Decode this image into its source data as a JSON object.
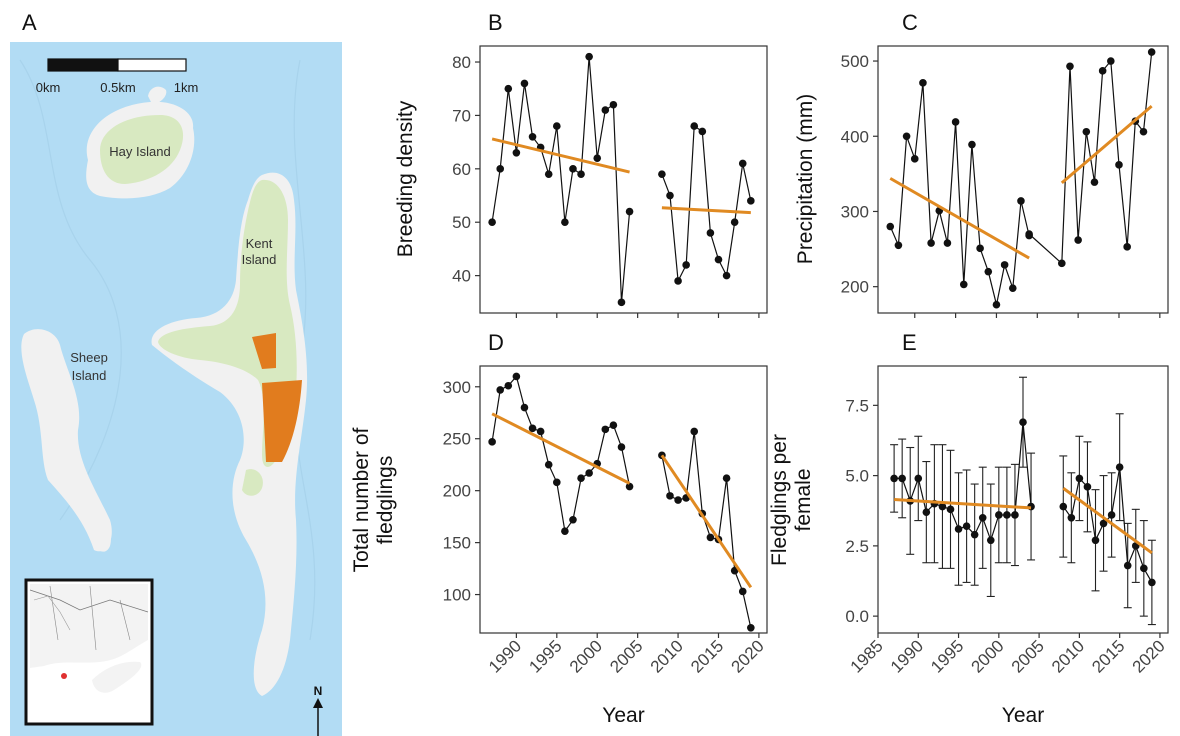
{
  "figure": {
    "panel_letters": [
      "A",
      "B",
      "C",
      "D",
      "E"
    ]
  },
  "map": {
    "scale_labels": [
      "0km",
      "0.5km",
      "1km"
    ],
    "north_label": "N",
    "island_labels": [
      [
        "Hay Island"
      ],
      [
        "Kent",
        "Island"
      ],
      [
        "Sheep",
        "Island"
      ]
    ],
    "colors": {
      "water": "#b2dcf4",
      "land": "#f1f1f1",
      "vegetation": "#d8e9c1",
      "study_plots": "#e17c1e"
    }
  },
  "colors": {
    "trend": "#e08a22",
    "points": "#111111",
    "frame": "#333333"
  },
  "chart_data": [
    {
      "panel": "B",
      "type": "line",
      "ylabel": [
        "Breeding density"
      ],
      "xlabel": "",
      "xlim": [
        1985.5,
        2021
      ],
      "ylim": [
        33,
        83
      ],
      "yticks": [
        40,
        50,
        60,
        70,
        80
      ],
      "xticks": [
        1990,
        1995,
        2000,
        2005,
        2010,
        2015,
        2020
      ],
      "show_x_ticklabels": false,
      "series": [
        {
          "x": [
            1987,
            1988,
            1989,
            1990,
            1991,
            1992,
            1993,
            1994,
            1995,
            1996,
            1997,
            1998,
            1999,
            2000,
            2001,
            2002,
            2003,
            2004
          ],
          "y": [
            50,
            60,
            75,
            63,
            76,
            66,
            64,
            59,
            68,
            50,
            60,
            59,
            81,
            62,
            71,
            72,
            35,
            52
          ]
        },
        {
          "x": [
            2008,
            2009,
            2010,
            2011,
            2012,
            2013,
            2014,
            2015,
            2016,
            2017,
            2018,
            2019
          ],
          "y": [
            59,
            55,
            39,
            42,
            68,
            67,
            48,
            43,
            40,
            50,
            61,
            54
          ]
        }
      ],
      "trends": [
        {
          "x": [
            1987,
            2004
          ],
          "y": [
            65.6,
            59.4
          ]
        },
        {
          "x": [
            2008,
            2019
          ],
          "y": [
            52.7,
            51.8
          ]
        }
      ]
    },
    {
      "panel": "C",
      "type": "line",
      "ylabel": [
        "Precipitation (mm)"
      ],
      "xlabel": "",
      "xlim": [
        1985.5,
        2021
      ],
      "ylim": [
        165,
        520
      ],
      "yticks": [
        200,
        300,
        400,
        500
      ],
      "xticks": [
        1990,
        1995,
        2000,
        2005,
        2010,
        2015,
        2020
      ],
      "show_x_ticklabels": false,
      "series": [
        {
          "x": [
            1987,
            1988,
            1989,
            1990,
            1991,
            1992,
            1993,
            1994,
            1995,
            1996,
            1997,
            1998,
            1999,
            2000,
            2001,
            2002,
            2003,
            2004
          ],
          "y": [
            280,
            255,
            400,
            370,
            471,
            258,
            301,
            258,
            419,
            203,
            389,
            251,
            220,
            176,
            229,
            198,
            314,
            268
          ]
        },
        {
          "x": [
            2004,
            2008,
            2009,
            2010,
            2011,
            2012,
            2013,
            2014,
            2015,
            2016,
            2017,
            2018,
            2019
          ],
          "y": [
            270,
            231,
            493,
            262,
            406,
            339,
            487,
            500,
            362,
            253,
            420,
            406,
            512
          ]
        }
      ],
      "trends": [
        {
          "x": [
            1987,
            2004
          ],
          "y": [
            344,
            238
          ]
        },
        {
          "x": [
            2008,
            2019
          ],
          "y": [
            338,
            440
          ]
        }
      ]
    },
    {
      "panel": "D",
      "type": "line",
      "ylabel": [
        "Total number of",
        "fledglings"
      ],
      "xlabel": "Year",
      "xlim": [
        1985.5,
        2021
      ],
      "ylim": [
        63,
        320
      ],
      "yticks": [
        100,
        150,
        200,
        250,
        300
      ],
      "xticks": [
        1990,
        1995,
        2000,
        2005,
        2010,
        2015,
        2020
      ],
      "show_x_ticklabels": true,
      "series": [
        {
          "x": [
            1987,
            1988,
            1989,
            1990,
            1991,
            1992,
            1993,
            1994,
            1995,
            1996,
            1997,
            1998,
            1999,
            2000,
            2001,
            2002,
            2003,
            2004
          ],
          "y": [
            247,
            297,
            301,
            310,
            280,
            260,
            257,
            225,
            208,
            161,
            172,
            212,
            217,
            226,
            259,
            263,
            242,
            204
          ]
        },
        {
          "x": [
            2008,
            2009,
            2010,
            2011,
            2012,
            2013,
            2014,
            2015,
            2016,
            2017,
            2018,
            2019
          ],
          "y": [
            234,
            195,
            191,
            193,
            257,
            178,
            155,
            153,
            212,
            123,
            103,
            68
          ]
        }
      ],
      "trends": [
        {
          "x": [
            1987,
            2004
          ],
          "y": [
            274,
            207
          ]
        },
        {
          "x": [
            2008,
            2019
          ],
          "y": [
            234,
            107
          ]
        }
      ]
    },
    {
      "panel": "E",
      "type": "line",
      "ylabel": [
        "Fledglings per",
        "female"
      ],
      "xlabel": "Year",
      "xlim": [
        1985,
        2021
      ],
      "ylim": [
        -0.6,
        8.9
      ],
      "yticks": [
        0.0,
        2.5,
        5.0,
        7.5
      ],
      "ytick_labels": [
        "0.0",
        "2.5",
        "5.0",
        "7.5"
      ],
      "xticks": [
        1985,
        1990,
        1995,
        2000,
        2005,
        2010,
        2015,
        2020
      ],
      "show_x_ticklabels": true,
      "series": [
        {
          "x": [
            1987,
            1988,
            1989,
            1990,
            1991,
            1992,
            1993,
            1994,
            1995,
            1996,
            1997,
            1998,
            1999,
            2000,
            2001,
            2002,
            2003,
            2004
          ],
          "y": [
            4.9,
            4.9,
            4.1,
            4.9,
            3.7,
            4.0,
            3.9,
            3.8,
            3.1,
            3.2,
            2.9,
            3.5,
            2.7,
            3.6,
            3.6,
            3.6,
            6.9,
            3.9
          ],
          "err": [
            1.2,
            1.4,
            1.9,
            1.5,
            1.8,
            2.1,
            2.2,
            2.1,
            2.0,
            2.0,
            1.8,
            1.8,
            2.0,
            1.7,
            1.7,
            1.8,
            1.6,
            1.9
          ]
        },
        {
          "x": [
            2008,
            2009,
            2010,
            2011,
            2012,
            2013,
            2014,
            2015,
            2016,
            2017,
            2018,
            2019
          ],
          "y": [
            3.9,
            3.5,
            4.9,
            4.6,
            2.7,
            3.3,
            3.6,
            5.3,
            1.8,
            2.5,
            1.7,
            1.2
          ],
          "err": [
            1.8,
            1.6,
            1.5,
            1.6,
            1.8,
            1.7,
            1.5,
            1.9,
            1.5,
            1.3,
            1.7,
            1.5
          ]
        }
      ],
      "trends": [
        {
          "x": [
            1987,
            2004
          ],
          "y": [
            4.15,
            3.85
          ]
        },
        {
          "x": [
            2008,
            2019
          ],
          "y": [
            4.55,
            2.25
          ]
        }
      ]
    }
  ]
}
